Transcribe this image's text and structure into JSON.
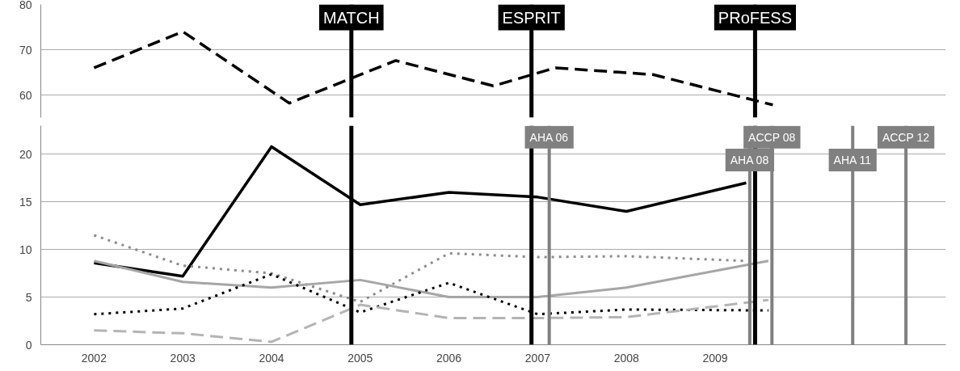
{
  "chart_data": [
    {
      "type": "line",
      "xlim": [
        2001.4,
        2011.6
      ],
      "ylim": [
        55,
        80
      ],
      "yticks": [
        60,
        70,
        80
      ],
      "grid": "y",
      "tick_labels": "y",
      "series": [
        {
          "color": "#000000",
          "line_style": "dashed",
          "x": [
            2002,
            2003,
            2004.2,
            2005.4,
            2006.5,
            2007.2,
            2008.3,
            2009.65
          ],
          "values": [
            66,
            74,
            58.2,
            67.6,
            62,
            66,
            64.5,
            57.8
          ]
        }
      ],
      "ref_lines": [
        {
          "axis": "x",
          "value": 2004.9,
          "label": "MATCH",
          "color": "#000000"
        },
        {
          "axis": "x",
          "value": 2006.93,
          "label": "ESPRIT",
          "color": "#000000"
        },
        {
          "axis": "x",
          "value": 2009.45,
          "label": "PRoFESS",
          "color": "#000000"
        }
      ]
    },
    {
      "type": "line",
      "xlim": [
        2001.4,
        2011.6
      ],
      "ylim": [
        0,
        23
      ],
      "yticks": [
        0,
        5,
        10,
        15,
        20
      ],
      "xticks": [
        2002,
        2003,
        2004,
        2005,
        2006,
        2007,
        2008,
        2009
      ],
      "grid": "y",
      "series": [
        {
          "color": "#000000",
          "line_style": "solid",
          "x": [
            2002,
            2003,
            2004,
            2005,
            2006,
            2007,
            2008,
            2009.35
          ],
          "values": [
            8.6,
            7.2,
            20.8,
            14.7,
            16,
            15.5,
            14,
            17
          ]
        },
        {
          "color": "#8c8c8c",
          "line_style": "dotted",
          "x": [
            2002,
            2003,
            2004,
            2005,
            2006,
            2007,
            2008,
            2009.35
          ],
          "values": [
            11.5,
            8.3,
            7.5,
            4.5,
            9.6,
            9.2,
            9.3,
            8.8
          ]
        },
        {
          "color": "#a6a6a6",
          "line_style": "solid",
          "x": [
            2002,
            2003,
            2004,
            2005,
            2006,
            2007,
            2008,
            2009.6
          ],
          "values": [
            8.8,
            6.6,
            6,
            6.8,
            5,
            5,
            6,
            8.8
          ]
        },
        {
          "color": "#000000",
          "line_style": "dotted",
          "x": [
            2002,
            2003,
            2004,
            2005,
            2006,
            2007,
            2008,
            2009.6
          ],
          "values": [
            3.2,
            3.8,
            7.4,
            3.4,
            6.5,
            3.2,
            3.7,
            3.6
          ]
        },
        {
          "color": "#b4b4b4",
          "line_style": "dashed",
          "x": [
            2002,
            2003,
            2004,
            2005,
            2006,
            2007,
            2008,
            2009.6
          ],
          "values": [
            1.5,
            1.2,
            0.3,
            4.2,
            2.8,
            2.8,
            2.9,
            4.7
          ]
        }
      ],
      "ref_lines": [
        {
          "axis": "x",
          "value": 2004.9,
          "label": null,
          "color": "#000000"
        },
        {
          "axis": "x",
          "value": 2006.93,
          "label": null,
          "color": "#000000"
        },
        {
          "axis": "x",
          "value": 2009.45,
          "label": null,
          "color": "#000000"
        },
        {
          "axis": "x",
          "value": 2007.13,
          "label": "AHA 06",
          "color": "#808080"
        },
        {
          "axis": "x",
          "value": 2009.39,
          "label": "AHA 08",
          "color": "#808080"
        },
        {
          "axis": "x",
          "value": 2009.64,
          "label": "ACCP 08",
          "color": "#808080"
        },
        {
          "axis": "x",
          "value": 2010.55,
          "label": "AHA 11",
          "color": "#808080"
        },
        {
          "axis": "x",
          "value": 2011.15,
          "label": "ACCP 12",
          "color": "#808080"
        }
      ]
    }
  ]
}
